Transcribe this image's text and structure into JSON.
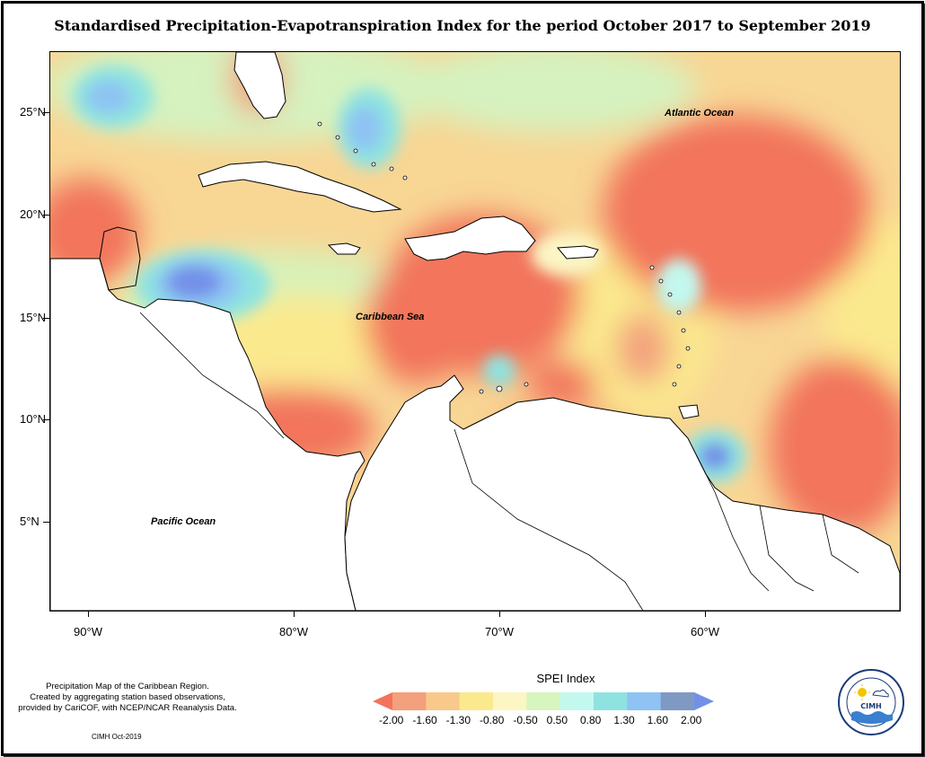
{
  "title": "Standardised Precipitation-Evapotranspiration Index for the period October 2017 to September 2019",
  "map": {
    "labels": {
      "atlantic": "Atlantic Ocean",
      "caribbean": "Caribbean Sea",
      "pacific": "Pacific Ocean"
    },
    "lat_ticks": [
      "25°N",
      "20°N",
      "15°N",
      "10°N",
      "5°N"
    ],
    "lon_ticks": [
      "90°W",
      "80°W",
      "70°W",
      "60°W"
    ]
  },
  "legend": {
    "title": "SPEI Index",
    "ticks": [
      "-2.00",
      "-1.60",
      "-1.30",
      "-0.80",
      "-0.50",
      "0.50",
      "0.80",
      "1.30",
      "1.60",
      "2.00"
    ],
    "colors": [
      "#f2745c",
      "#f3a07d",
      "#f8c98b",
      "#fbe98e",
      "#fbf6c4",
      "#d7f5be",
      "#c3f8ee",
      "#8ee3e0",
      "#8ec3f3",
      "#7e9ac3",
      "#7390e8"
    ]
  },
  "note": {
    "lines": [
      "Precipitation Map of the Caribbean Region.",
      "Created by aggregating station based observations,",
      "provided by CariCOF, with NCEP/NCAR Reanalysis Data."
    ],
    "credit": "CIMH Oct-2019"
  },
  "logo": {
    "text": "CIMH",
    "ring_text": "Caribbean Institute for Meteorology and Hydrology"
  }
}
